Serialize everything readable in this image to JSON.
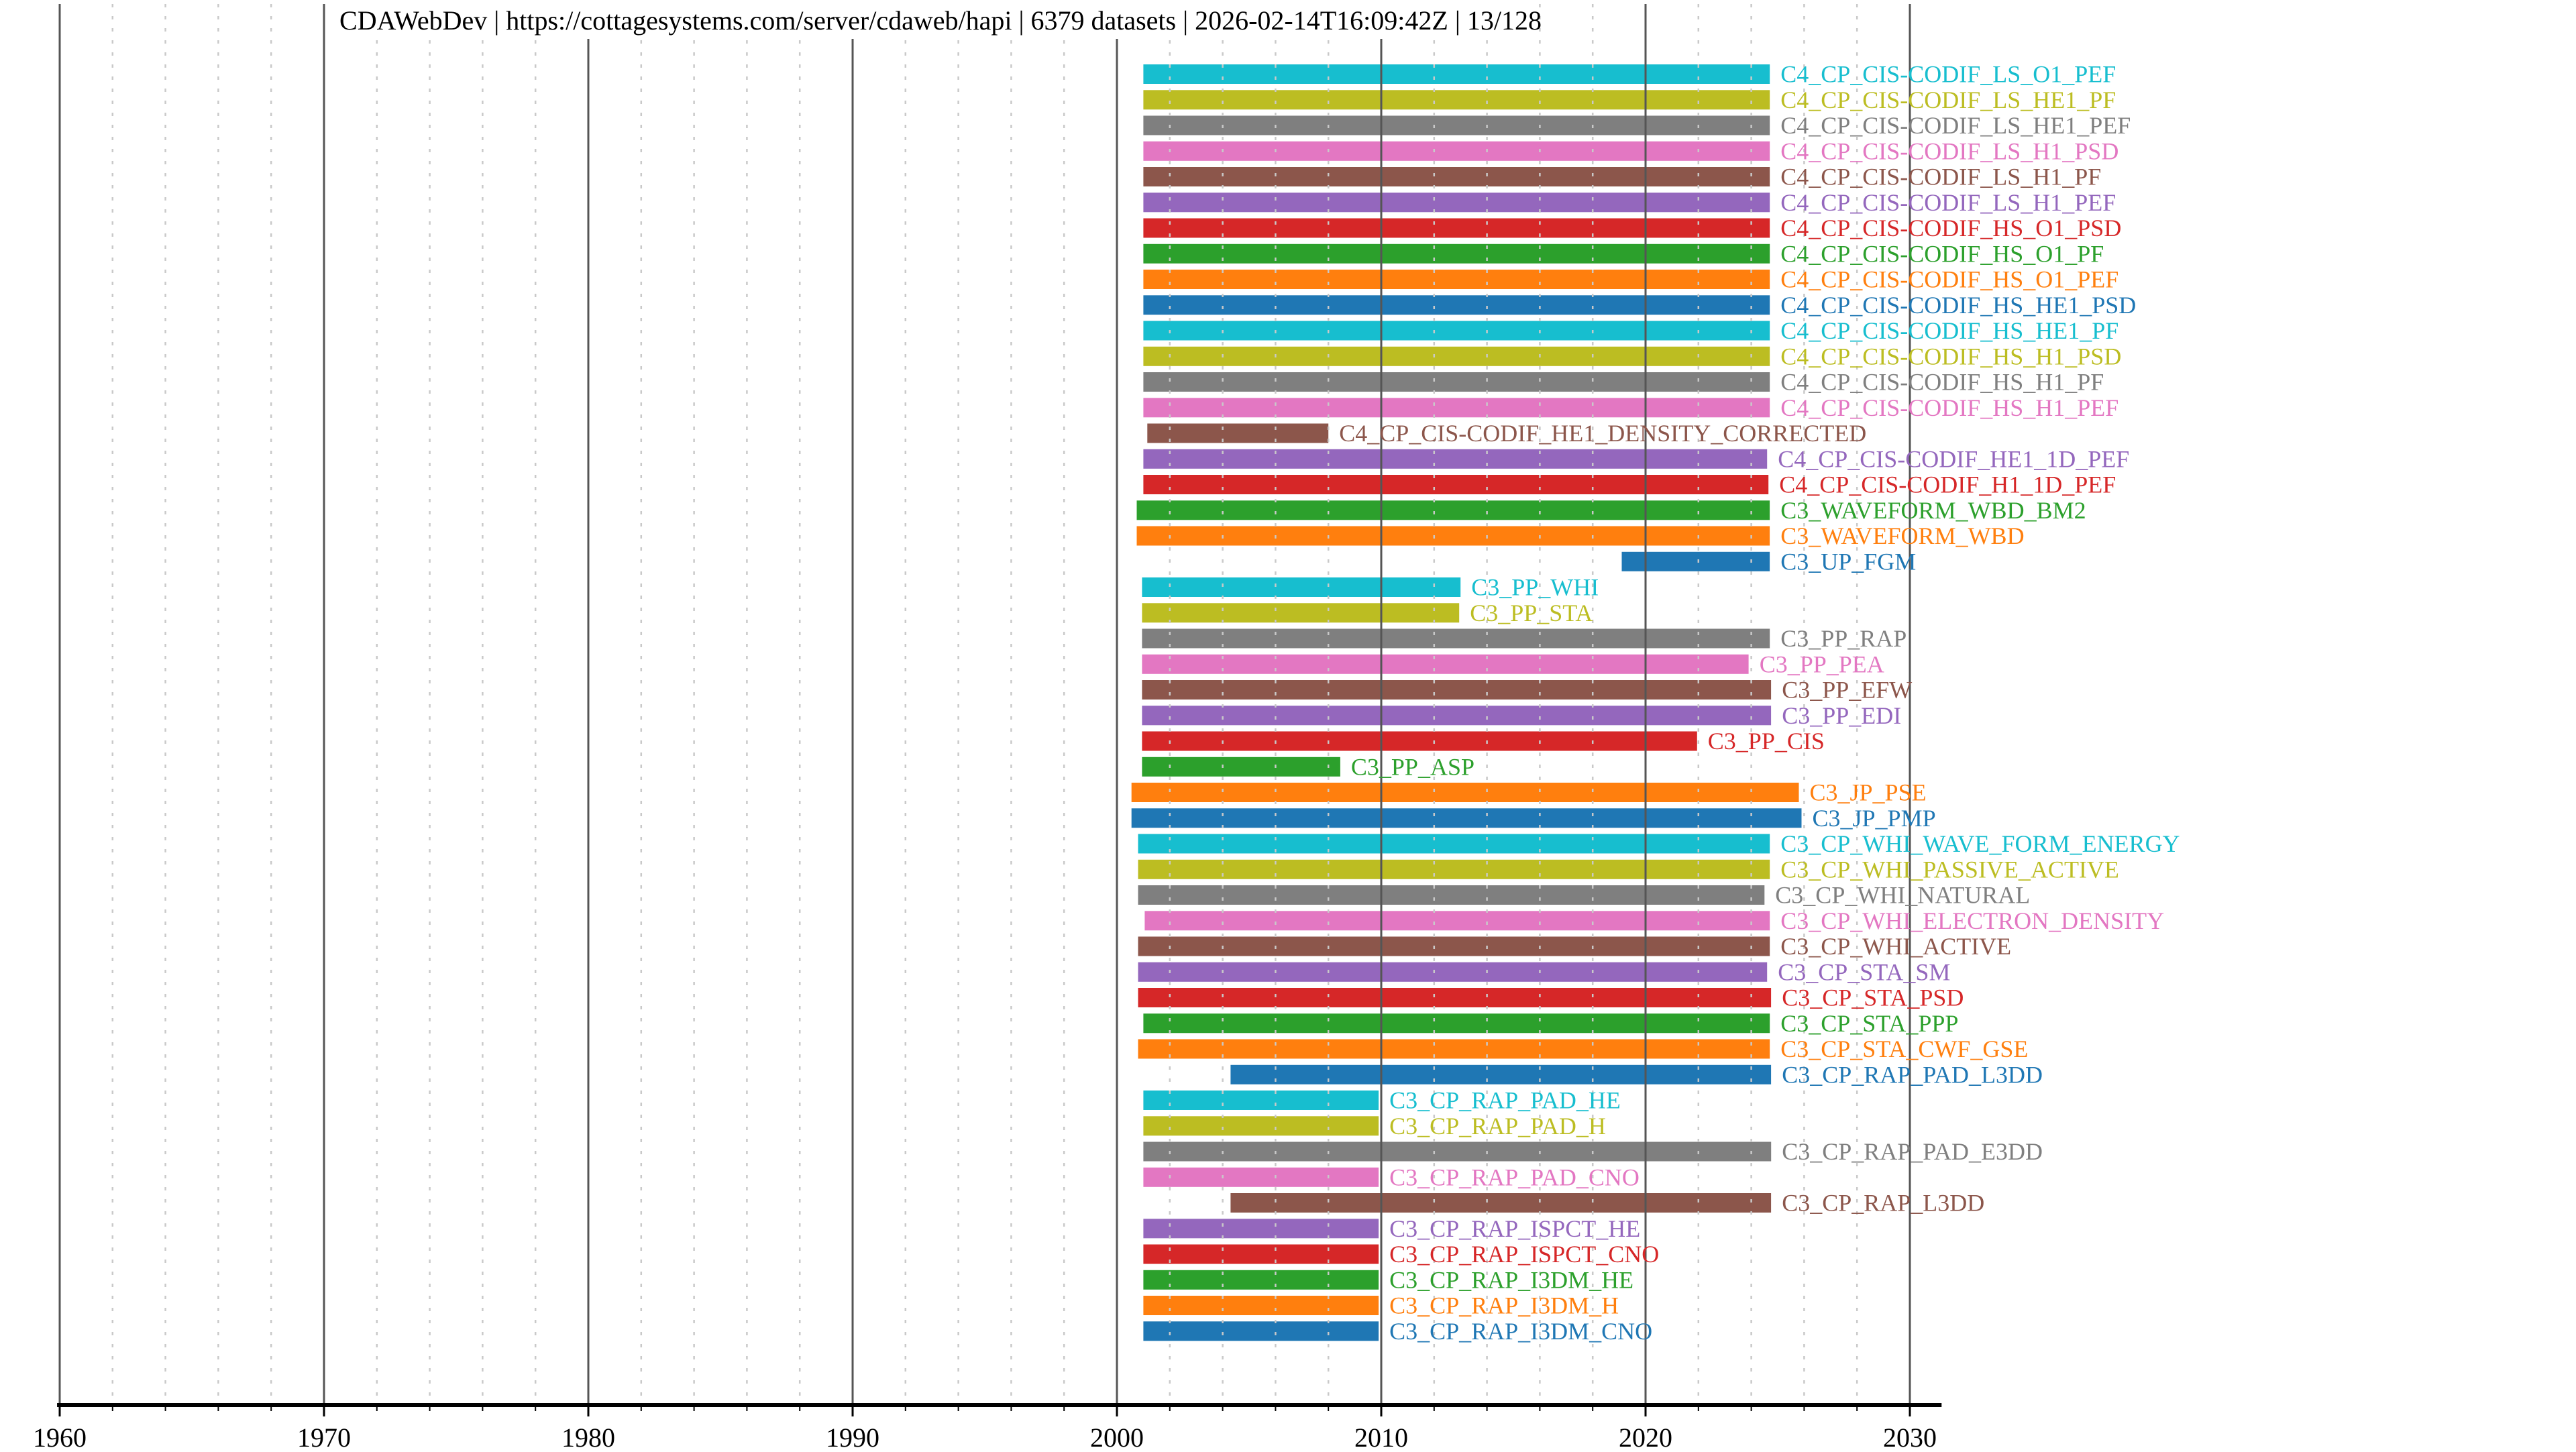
{
  "header": {
    "title": "CDAWebDev | https://cottagesystems.com/server/cdaweb/hapi | 6379 datasets | 2026-02-14T16:09:42Z | 13/128",
    "server_label": "CDAWebDev",
    "server_url": "https://cottagesystems.com/server/cdaweb/hapi",
    "dataset_count": "6379 datasets",
    "generated_timestamp": "2026-02-14T16:09:42Z",
    "page_indicator": "13/128",
    "separator": " | "
  },
  "colors": {
    "background": "#ffffff",
    "title_text": "#000000",
    "axis_line": "#000000",
    "tick_mark": "#000000",
    "year_label": "#000000",
    "decade_gridline": "#555555",
    "minor_gridline": "#c9c9c9"
  },
  "chart_data": {
    "type": "bar",
    "subtype": "horizontal-time-interval-availability",
    "title": "CDAWebDev | https://cottagesystems.com/server/cdaweb/hapi | 6379 datasets | 2026-02-14T16:09:42Z | 13/128",
    "xlabel": "",
    "ylabel": "",
    "x_axis": {
      "unit": "year",
      "min": 1959.9,
      "max": 2031.2,
      "decade_ticks": [
        1960,
        1970,
        1980,
        1990,
        2000,
        2010,
        2020,
        2030
      ],
      "tick_labels": [
        "1960",
        "1970",
        "1980",
        "1990",
        "2000",
        "2010",
        "2020",
        "2030"
      ],
      "minor_tick_step_years": 2
    },
    "grid": {
      "decade_solid_lines": true,
      "minor_dashed_lines_every_years": 2,
      "gridlines_drawn_over_bars": true
    },
    "legend": "none",
    "palette": {
      "blue": "#1f77b4",
      "orange": "#ff7f0e",
      "green": "#2ca02c",
      "red": "#d62728",
      "purple": "#9467bd",
      "brown": "#8c564b",
      "pink": "#e377c2",
      "gray": "#7f7f7f",
      "olive": "#bcbd22",
      "cyan": "#17becf"
    },
    "series": [
      {
        "label": "C4_CP_CIS-CODIF_LS_O1_PEF",
        "color_name": "cyan",
        "start": 2001.0,
        "end": 2024.7
      },
      {
        "label": "C4_CP_CIS-CODIF_LS_HE1_PF",
        "color_name": "olive",
        "start": 2001.0,
        "end": 2024.7
      },
      {
        "label": "C4_CP_CIS-CODIF_LS_HE1_PEF",
        "color_name": "gray",
        "start": 2001.0,
        "end": 2024.7
      },
      {
        "label": "C4_CP_CIS-CODIF_LS_H1_PSD",
        "color_name": "pink",
        "start": 2001.0,
        "end": 2024.7
      },
      {
        "label": "C4_CP_CIS-CODIF_LS_H1_PF",
        "color_name": "brown",
        "start": 2001.0,
        "end": 2024.7
      },
      {
        "label": "C4_CP_CIS-CODIF_LS_H1_PEF",
        "color_name": "purple",
        "start": 2001.0,
        "end": 2024.7
      },
      {
        "label": "C4_CP_CIS-CODIF_HS_O1_PSD",
        "color_name": "red",
        "start": 2001.0,
        "end": 2024.7
      },
      {
        "label": "C4_CP_CIS-CODIF_HS_O1_PF",
        "color_name": "green",
        "start": 2001.0,
        "end": 2024.7
      },
      {
        "label": "C4_CP_CIS-CODIF_HS_O1_PEF",
        "color_name": "orange",
        "start": 2001.0,
        "end": 2024.7
      },
      {
        "label": "C4_CP_CIS-CODIF_HS_HE1_PSD",
        "color_name": "blue",
        "start": 2001.0,
        "end": 2024.7
      },
      {
        "label": "C4_CP_CIS-CODIF_HS_HE1_PF",
        "color_name": "cyan",
        "start": 2001.0,
        "end": 2024.7
      },
      {
        "label": "C4_CP_CIS-CODIF_HS_H1_PSD",
        "color_name": "olive",
        "start": 2001.0,
        "end": 2024.7
      },
      {
        "label": "C4_CP_CIS-CODIF_HS_H1_PF",
        "color_name": "gray",
        "start": 2001.0,
        "end": 2024.7
      },
      {
        "label": "C4_CP_CIS-CODIF_HS_H1_PEF",
        "color_name": "pink",
        "start": 2001.0,
        "end": 2024.7
      },
      {
        "label": "C4_CP_CIS-CODIF_HE1_DENSITY_CORRECTED",
        "color_name": "brown",
        "start": 2001.15,
        "end": 2008.0
      },
      {
        "label": "C4_CP_CIS-CODIF_HE1_1D_PEF",
        "color_name": "purple",
        "start": 2001.0,
        "end": 2024.6
      },
      {
        "label": "C4_CP_CIS-CODIF_H1_1D_PEF",
        "color_name": "red",
        "start": 2001.0,
        "end": 2024.65
      },
      {
        "label": "C3_WAVEFORM_WBD_BM2",
        "color_name": "green",
        "start": 2000.75,
        "end": 2024.7
      },
      {
        "label": "C3_WAVEFORM_WBD",
        "color_name": "orange",
        "start": 2000.75,
        "end": 2024.7
      },
      {
        "label": "C3_UP_FGM",
        "color_name": "blue",
        "start": 2019.1,
        "end": 2024.7
      },
      {
        "label": "C3_PP_WHI",
        "color_name": "cyan",
        "start": 2000.95,
        "end": 2013.0
      },
      {
        "label": "C3_PP_STA",
        "color_name": "olive",
        "start": 2000.95,
        "end": 2012.95
      },
      {
        "label": "C3_PP_RAP",
        "color_name": "gray",
        "start": 2000.95,
        "end": 2024.7
      },
      {
        "label": "C3_PP_PEA",
        "color_name": "pink",
        "start": 2000.95,
        "end": 2023.9
      },
      {
        "label": "C3_PP_EFW",
        "color_name": "brown",
        "start": 2000.95,
        "end": 2024.75
      },
      {
        "label": "C3_PP_EDI",
        "color_name": "purple",
        "start": 2000.95,
        "end": 2024.75
      },
      {
        "label": "C3_PP_CIS",
        "color_name": "red",
        "start": 2000.95,
        "end": 2021.95
      },
      {
        "label": "C3_PP_ASP",
        "color_name": "green",
        "start": 2000.95,
        "end": 2008.45
      },
      {
        "label": "C3_JP_PSE",
        "color_name": "orange",
        "start": 2000.55,
        "end": 2025.8
      },
      {
        "label": "C3_JP_PMP",
        "color_name": "blue",
        "start": 2000.55,
        "end": 2025.9
      },
      {
        "label": "C3_CP_WHI_WAVE_FORM_ENERGY",
        "color_name": "cyan",
        "start": 2000.8,
        "end": 2024.7
      },
      {
        "label": "C3_CP_WHI_PASSIVE_ACTIVE",
        "color_name": "olive",
        "start": 2000.8,
        "end": 2024.7
      },
      {
        "label": "C3_CP_WHI_NATURAL",
        "color_name": "gray",
        "start": 2000.8,
        "end": 2024.5
      },
      {
        "label": "C3_CP_WHI_ELECTRON_DENSITY",
        "color_name": "pink",
        "start": 2001.05,
        "end": 2024.7
      },
      {
        "label": "C3_CP_WHI_ACTIVE",
        "color_name": "brown",
        "start": 2000.8,
        "end": 2024.7
      },
      {
        "label": "C3_CP_STA_SM",
        "color_name": "purple",
        "start": 2000.8,
        "end": 2024.6
      },
      {
        "label": "C3_CP_STA_PSD",
        "color_name": "red",
        "start": 2000.8,
        "end": 2024.75
      },
      {
        "label": "C3_CP_STA_PPP",
        "color_name": "green",
        "start": 2001.0,
        "end": 2024.7
      },
      {
        "label": "C3_CP_STA_CWF_GSE",
        "color_name": "orange",
        "start": 2000.8,
        "end": 2024.7
      },
      {
        "label": "C3_CP_RAP_PAD_L3DD",
        "color_name": "blue",
        "start": 2004.3,
        "end": 2024.75
      },
      {
        "label": "C3_CP_RAP_PAD_HE",
        "color_name": "cyan",
        "start": 2001.0,
        "end": 2009.9
      },
      {
        "label": "C3_CP_RAP_PAD_H",
        "color_name": "olive",
        "start": 2001.0,
        "end": 2009.9
      },
      {
        "label": "C3_CP_RAP_PAD_E3DD",
        "color_name": "gray",
        "start": 2001.0,
        "end": 2024.75
      },
      {
        "label": "C3_CP_RAP_PAD_CNO",
        "color_name": "pink",
        "start": 2001.0,
        "end": 2009.9
      },
      {
        "label": "C3_CP_RAP_L3DD",
        "color_name": "brown",
        "start": 2004.3,
        "end": 2024.75
      },
      {
        "label": "C3_CP_RAP_ISPCT_HE",
        "color_name": "purple",
        "start": 2001.0,
        "end": 2009.9
      },
      {
        "label": "C3_CP_RAP_ISPCT_CNO",
        "color_name": "red",
        "start": 2001.0,
        "end": 2009.9
      },
      {
        "label": "C3_CP_RAP_I3DM_HE",
        "color_name": "green",
        "start": 2001.0,
        "end": 2009.9
      },
      {
        "label": "C3_CP_RAP_I3DM_H",
        "color_name": "orange",
        "start": 2001.0,
        "end": 2009.9
      },
      {
        "label": "C3_CP_RAP_I3DM_CNO",
        "color_name": "blue",
        "start": 2001.0,
        "end": 2009.9
      }
    ]
  }
}
